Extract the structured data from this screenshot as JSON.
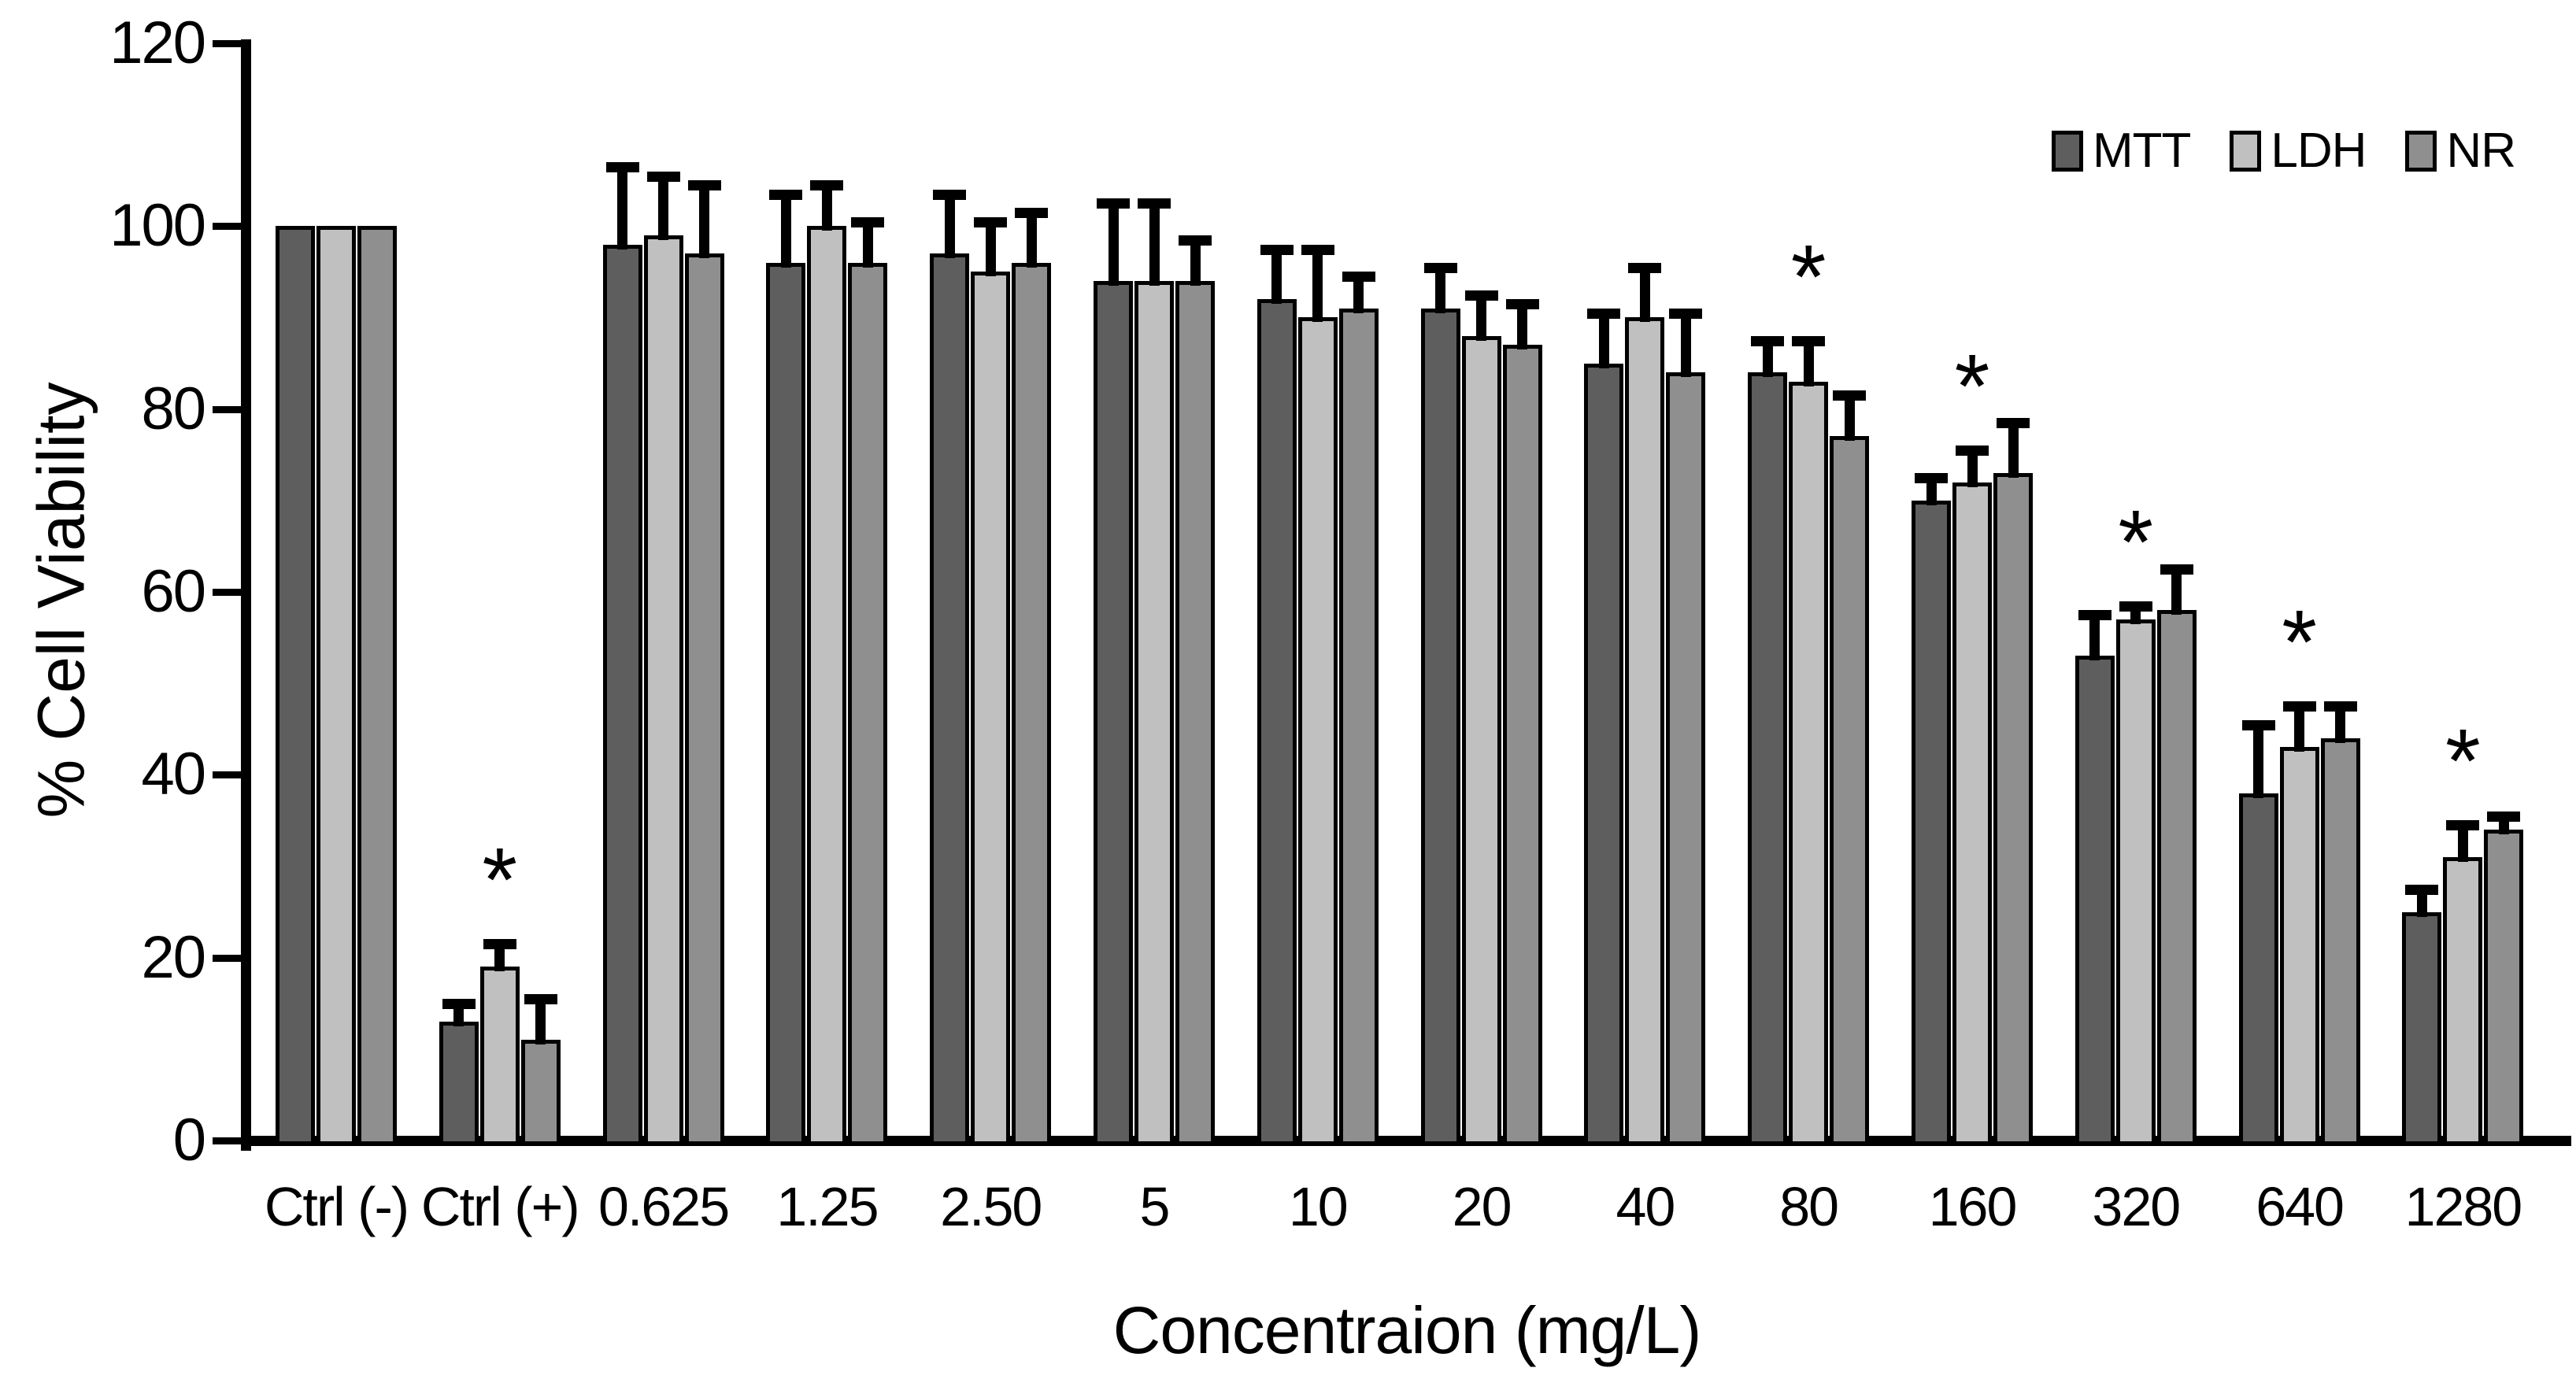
{
  "chart_data": {
    "type": "bar",
    "title": "",
    "xlabel": "Concentraion (mg/L)",
    "ylabel": "% Cell Viability",
    "ylim": [
      0,
      120
    ],
    "y_ticks": [
      0,
      20,
      40,
      60,
      80,
      100,
      120
    ],
    "grid": false,
    "legend_position": "top-right",
    "categories": [
      "Ctrl (-)",
      "Ctrl (+)",
      "0.625",
      "1.25",
      "2.50",
      "5",
      "10",
      "20",
      "40",
      "80",
      "160",
      "320",
      "640",
      "1280"
    ],
    "series": [
      {
        "name": "MTT",
        "color": "#5e5e5e",
        "values": [
          100,
          13,
          98,
          96,
          97,
          94,
          92,
          91,
          85,
          84,
          70,
          53,
          38,
          25
        ],
        "error_up": [
          0,
          2.5,
          9,
          8,
          7,
          9,
          6,
          5,
          6,
          4,
          3,
          5,
          8,
          3
        ]
      },
      {
        "name": "LDH",
        "color": "#c0c0c0",
        "values": [
          100,
          19,
          99,
          100,
          95,
          94,
          90,
          88,
          90,
          83,
          72,
          57,
          43,
          31
        ],
        "error_up": [
          0,
          3,
          7,
          5,
          6,
          9,
          8,
          5,
          6,
          5,
          4,
          2,
          5,
          4
        ]
      },
      {
        "name": "NR",
        "color": "#8f8f8f",
        "values": [
          100,
          11,
          97,
          96,
          96,
          94,
          91,
          87,
          84,
          77,
          73,
          58,
          44,
          34
        ],
        "error_up": [
          0,
          5,
          8,
          5,
          6,
          5,
          4,
          5,
          7,
          5,
          6,
          5,
          4,
          2
        ]
      }
    ],
    "significance": {
      "symbol": "*",
      "series": "LDH",
      "group_indices": [
        1,
        9,
        10,
        11,
        12,
        13
      ],
      "group_labels": [
        "Ctrl (+)",
        "80",
        "160",
        "320",
        "640",
        "1280"
      ]
    }
  },
  "legend": {
    "items": [
      {
        "label": "MTT",
        "color": "#5e5e5e"
      },
      {
        "label": "LDH",
        "color": "#c0c0c0"
      },
      {
        "label": "NR",
        "color": "#8f8f8f"
      }
    ]
  }
}
